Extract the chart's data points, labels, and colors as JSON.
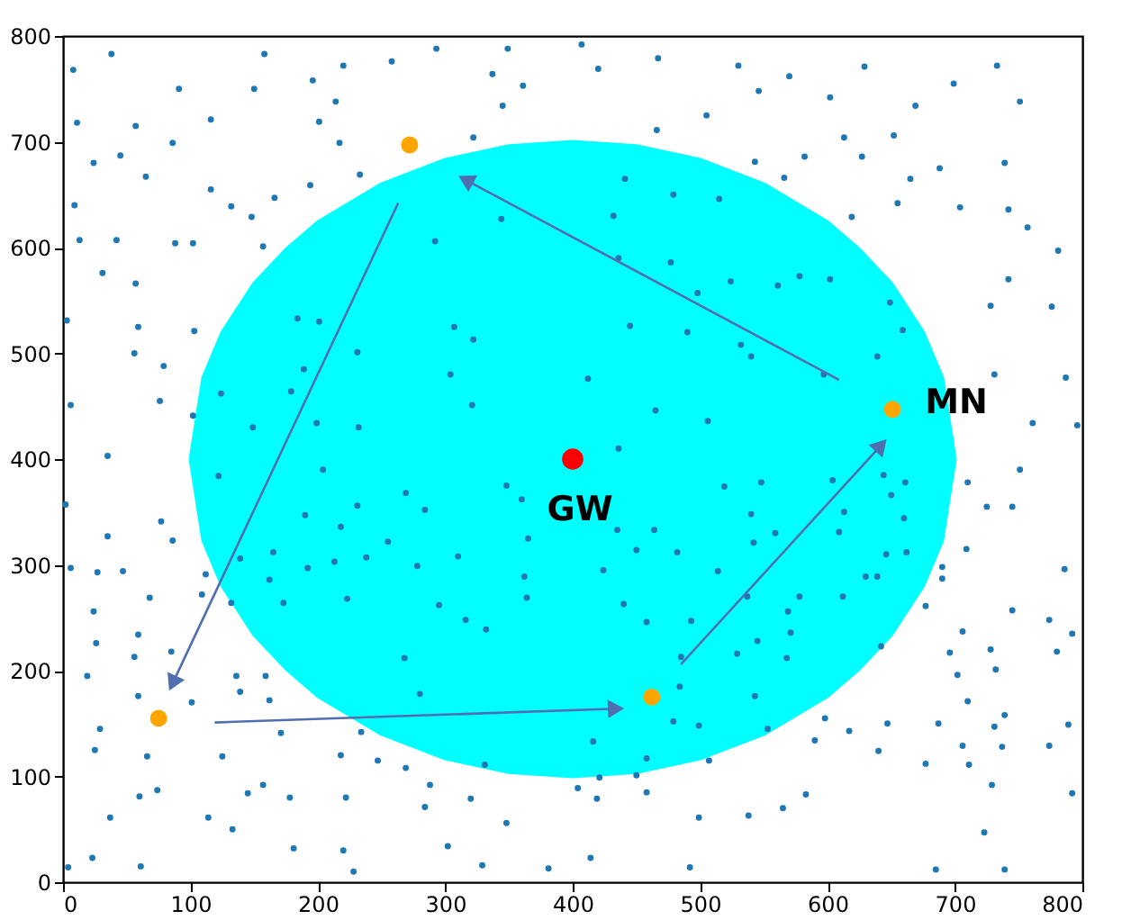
{
  "chart_data": {
    "type": "scatter",
    "xlim": [
      0,
      800
    ],
    "ylim": [
      0,
      800
    ],
    "xticks": [
      0,
      100,
      200,
      300,
      400,
      500,
      600,
      700,
      800
    ],
    "yticks": [
      0,
      100,
      200,
      300,
      400,
      500,
      600,
      700,
      800
    ],
    "grid": false,
    "annotations": [
      {
        "text": "GW",
        "x": 400,
        "y": 400
      },
      {
        "text": "MN",
        "x": 651,
        "y": 447
      }
    ],
    "series": [
      {
        "type": "area",
        "color": "#00ffff",
        "x": [
          100,
          110,
          125,
          150,
          175,
          200,
          250,
          300,
          350,
          400,
          450,
          500,
          550,
          600,
          625,
          650,
          675,
          690,
          700,
          690,
          675,
          650,
          625,
          600,
          550,
          500,
          450,
          400,
          350,
          300,
          250,
          200,
          175,
          150,
          125,
          110,
          100
        ],
        "values": [
          400,
          477,
          520,
          566,
          598,
          624,
          660,
          683,
          696,
          700,
          696,
          683,
          660,
          624,
          598,
          566,
          520,
          477,
          400,
          323,
          280,
          234,
          202,
          176,
          140,
          117,
          104,
          100,
          104,
          117,
          140,
          176,
          202,
          234,
          280,
          323,
          400
        ]
      },
      {
        "marker": "circle",
        "color": "#1f77b4",
        "x": [
          38,
          158,
          8,
          220,
          91,
          150,
          196,
          214,
          11,
          57,
          116,
          86,
          24,
          45,
          65,
          201,
          217,
          233,
          194,
          116,
          132,
          166,
          148,
          9,
          13,
          42,
          88,
          102,
          157,
          31,
          57,
          3,
          59,
          103,
          56,
          79,
          6,
          76,
          184,
          201,
          231,
          189,
          179,
          124,
          102,
          149,
          199,
          232,
          307,
          322,
          304,
          321,
          344,
          292,
          337,
          361,
          345,
          322,
          349,
          293,
          258,
          407,
          420,
          467,
          530,
          570,
          629,
          699,
          733,
          751,
          669,
          602,
          546,
          505,
          466,
          613,
          652,
          627,
          582,
          543,
          566,
          688,
          739,
          665,
          655,
          704,
          742,
          619,
          757,
          781,
          742,
          728,
          776,
          441,
          479,
          515,
          432,
          436,
          477,
          498,
          524,
          561,
          578,
          602,
          649,
          445,
          490,
          532,
          540,
          412,
          465,
          506,
          597,
          639,
          659,
          731,
          787,
          761,
          796,
          436,
          35,
          2,
          77,
          35,
          86,
          6,
          27,
          47,
          68,
          24,
          26,
          59,
          56,
          19,
          85,
          59,
          29,
          25,
          66,
          60,
          74,
          37,
          23,
          61,
          4,
          114,
          133,
          145,
          157,
          178,
          125,
          171,
          181,
          220,
          228,
          222,
          218,
          234,
          247,
          269,
          288,
          284,
          320,
          302,
          329,
          348,
          381,
          331,
          280,
          268,
          136,
          159,
          162,
          139,
          101,
          112,
          109,
          132,
          122,
          204,
          190,
          231,
          269,
          284,
          218,
          255,
          165,
          139,
          213,
          238,
          192,
          162,
          173,
          223,
          278,
          310,
          295,
          316,
          332,
          365,
          362,
          364,
          348,
          360,
          751,
          710,
          725,
          745,
          709,
          690,
          690,
          786,
          745,
          677,
          706,
          728,
          696,
          702,
          732,
          774,
          792,
          780,
          710,
          739,
          687,
          731,
          789,
          706,
          737,
          774,
          711,
          677,
          729,
          792,
          723,
          685,
          739,
          647,
          617,
          640,
          598,
          590,
          583,
          565,
          538,
          499,
          492,
          414,
          419,
          458,
          404,
          450,
          421,
          416,
          507,
          458,
          499,
          479,
          553,
          543,
          484,
          485,
          529,
          568,
          458,
          493,
          545,
          571,
          569,
          537,
          578,
          612,
          642,
          630,
          639,
          646,
          662,
          609,
          559,
          542,
          514,
          482,
          450,
          464,
          435,
          424,
          440,
          613,
          650,
          661,
          644,
          604,
          548,
          519,
          540,
          660
        ],
        "values": [
          783,
          783,
          768,
          772,
          750,
          750,
          758,
          738,
          718,
          715,
          721,
          699,
          680,
          687,
          667,
          719,
          699,
          669,
          659,
          655,
          639,
          647,
          629,
          640,
          607,
          607,
          604,
          604,
          601,
          576,
          566,
          531,
          525,
          521,
          500,
          488,
          451,
          455,
          533,
          530,
          501,
          485,
          464,
          462,
          441,
          430,
          434,
          430,
          525,
          513,
          480,
          451,
          627,
          606,
          764,
          753,
          734,
          704,
          788,
          788,
          776,
          792,
          769,
          779,
          772,
          762,
          771,
          755,
          772,
          738,
          734,
          742,
          748,
          725,
          711,
          704,
          706,
          686,
          686,
          681,
          666,
          675,
          680,
          665,
          642,
          638,
          636,
          629,
          619,
          597,
          570,
          545,
          544,
          665,
          650,
          646,
          630,
          590,
          586,
          557,
          568,
          564,
          573,
          570,
          548,
          526,
          520,
          508,
          497,
          476,
          446,
          436,
          480,
          497,
          522,
          480,
          477,
          434,
          432,
          410,
          403,
          357,
          341,
          327,
          323,
          297,
          293,
          294,
          269,
          256,
          226,
          234,
          213,
          195,
          218,
          176,
          145,
          125,
          119,
          81,
          87,
          61,
          23,
          15,
          14,
          61,
          50,
          84,
          92,
          80,
          119,
          141,
          32,
          30,
          10,
          80,
          120,
          142,
          115,
          108,
          92,
          71,
          79,
          34,
          16,
          56,
          13,
          111,
          178,
          212,
          195,
          195,
          172,
          180,
          170,
          291,
          272,
          264,
          384,
          390,
          347,
          356,
          368,
          352,
          336,
          322,
          312,
          306,
          303,
          307,
          297,
          286,
          264,
          268,
          299,
          308,
          262,
          248,
          239,
          325,
          289,
          269,
          375,
          362,
          390,
          378,
          355,
          355,
          315,
          298,
          287,
          296,
          257,
          261,
          237,
          220,
          217,
          196,
          201,
          248,
          235,
          218,
          171,
          158,
          150,
          147,
          149,
          129,
          128,
          129,
          111,
          112,
          92,
          84,
          47,
          12,
          12,
          150,
          143,
          124,
          155,
          134,
          83,
          70,
          63,
          61,
          14,
          23,
          79,
          85,
          89,
          101,
          99,
          133,
          115,
          117,
          148,
          152,
          145,
          176,
          185,
          213,
          216,
          212,
          246,
          247,
          228,
          236,
          256,
          270,
          270,
          270,
          223,
          289,
          289,
          310,
          312,
          331,
          330,
          321,
          294,
          312,
          314,
          333,
          333,
          295,
          263,
          350,
          366,
          378,
          385,
          380,
          378,
          374,
          348,
          344
        ]
      },
      {
        "type": "line",
        "color": "#4f6fb0",
        "marker": "triangle",
        "x": [
          263,
          86
        ],
        "values": [
          642,
          188
        ]
      },
      {
        "type": "line",
        "color": "#4f6fb0",
        "marker": "triangle",
        "x": [
          119,
          434
        ],
        "values": [
          151,
          164
        ]
      },
      {
        "type": "line",
        "color": "#4f6fb0",
        "marker": "triangle",
        "x": [
          485,
          642
        ],
        "values": [
          206,
          413
        ]
      },
      {
        "type": "line",
        "color": "#4f6fb0",
        "marker": "triangle",
        "x": [
          609,
          316
        ],
        "values": [
          475,
          664
        ]
      },
      {
        "marker": "circle",
        "color": "#ffa500",
        "x": [
          272,
          75,
          462,
          651
        ],
        "values": [
          697,
          155,
          175,
          447
        ]
      },
      {
        "marker": "circle",
        "color": "#ff0000",
        "x": [
          400
        ],
        "values": [
          400
        ]
      }
    ]
  }
}
